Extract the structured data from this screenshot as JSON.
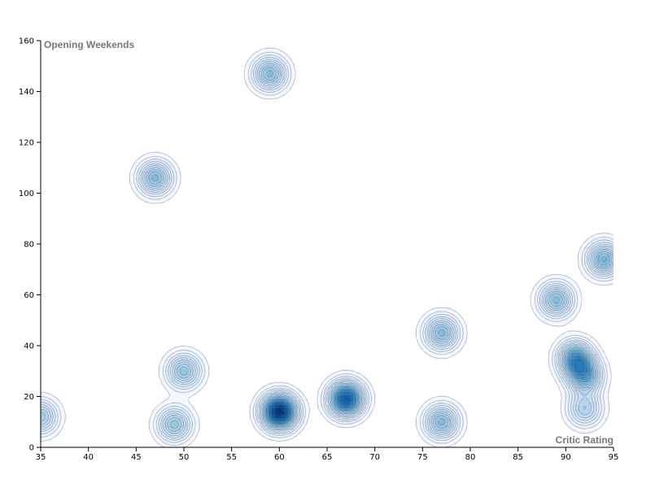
{
  "chart_data": {
    "type": "density-contour",
    "xlabel": "Critic Rating",
    "ylabel": "Opening Weekends",
    "xlim": [
      35,
      95
    ],
    "ylim": [
      0,
      160
    ],
    "x_ticks": [
      35,
      40,
      45,
      50,
      55,
      60,
      65,
      70,
      75,
      80,
      85,
      90,
      95
    ],
    "y_ticks": [
      0,
      20,
      40,
      60,
      80,
      100,
      120,
      140,
      160
    ],
    "color_scheme": "blues",
    "grid": false,
    "points": [
      {
        "x": 35,
        "y": 12,
        "w": 1.0
      },
      {
        "x": 47,
        "y": 106,
        "w": 1.2
      },
      {
        "x": 59,
        "y": 147,
        "w": 1.2
      },
      {
        "x": 49,
        "y": 9,
        "w": 1.1
      },
      {
        "x": 50,
        "y": 30,
        "w": 1.1
      },
      {
        "x": 60,
        "y": 14,
        "w": 2.6
      },
      {
        "x": 67,
        "y": 19,
        "w": 2.2
      },
      {
        "x": 77,
        "y": 45,
        "w": 1.2
      },
      {
        "x": 77,
        "y": 10,
        "w": 1.2
      },
      {
        "x": 89,
        "y": 58,
        "w": 1.2
      },
      {
        "x": 91,
        "y": 35,
        "w": 1.5
      },
      {
        "x": 92,
        "y": 28,
        "w": 1.3
      },
      {
        "x": 92,
        "y": 15,
        "w": 0.9
      },
      {
        "x": 94,
        "y": 74,
        "w": 1.3
      }
    ]
  }
}
